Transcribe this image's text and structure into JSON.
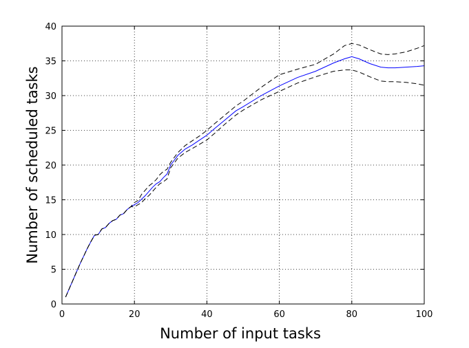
{
  "chart_data": {
    "type": "line",
    "title": "",
    "xlabel": "Number of input tasks",
    "ylabel": "Number of scheduled tasks",
    "xlim": [
      0,
      100
    ],
    "ylim": [
      0,
      40
    ],
    "xticks": [
      0,
      20,
      40,
      60,
      80,
      100
    ],
    "yticks": [
      0,
      5,
      10,
      15,
      20,
      25,
      30,
      35,
      40
    ],
    "xtick_labels": [
      "0",
      "20",
      "40",
      "60",
      "80",
      "100"
    ],
    "ytick_labels": [
      "0",
      "5",
      "10",
      "15",
      "20",
      "25",
      "30",
      "35",
      "40"
    ],
    "grid": true,
    "legend": "none",
    "series": [
      {
        "color": "#0000ff",
        "dash": "solid",
        "x": [
          1,
          2,
          3,
          4,
          5,
          6,
          7,
          8,
          9,
          10,
          11,
          12,
          13,
          14,
          15,
          16,
          17,
          18,
          19,
          20,
          21,
          22,
          23,
          24,
          25,
          26,
          27,
          28,
          29,
          30,
          32,
          34,
          36,
          38,
          40,
          42,
          45,
          48,
          50,
          55,
          60,
          65,
          70,
          75,
          78,
          80,
          82,
          85,
          88,
          90,
          92,
          95,
          98,
          100
        ],
        "y": [
          1,
          2.2,
          3.4,
          4.6,
          5.8,
          6.9,
          8,
          9,
          9.9,
          10,
          10.8,
          11,
          11.6,
          12,
          12.2,
          12.8,
          13,
          13.6,
          14,
          14.3,
          14.6,
          15.1,
          15.6,
          16.2,
          16.8,
          17.3,
          17.6,
          18.2,
          18.7,
          20,
          21.4,
          22.3,
          22.9,
          23.6,
          24.3,
          25.2,
          26.5,
          27.8,
          28.4,
          30,
          31.4,
          32.6,
          33.5,
          34.7,
          35.3,
          35.6,
          35.3,
          34.6,
          34.1,
          34.0,
          34.0,
          34.1,
          34.2,
          34.3
        ]
      },
      {
        "color": "#000000",
        "dash": "dashed",
        "x": [
          1,
          2,
          3,
          4,
          5,
          6,
          7,
          8,
          9,
          10,
          11,
          12,
          13,
          14,
          15,
          16,
          17,
          18,
          19,
          20,
          21,
          22,
          23,
          24,
          25,
          26,
          27,
          28,
          29,
          30,
          32,
          34,
          36,
          38,
          40,
          42,
          45,
          48,
          50,
          55,
          60,
          65,
          70,
          75,
          78,
          80,
          82,
          85,
          88,
          90,
          92,
          95,
          98,
          100
        ],
        "y": [
          1,
          2.2,
          3.4,
          4.6,
          5.8,
          6.9,
          8,
          9,
          9.9,
          10,
          10.8,
          11,
          11.6,
          12,
          12.2,
          12.8,
          13,
          13.6,
          14,
          14.6,
          14.9,
          15.8,
          16.4,
          17,
          17.4,
          17.9,
          18.6,
          19.1,
          19.4,
          20.4,
          21.8,
          22.8,
          23.5,
          24.2,
          25.0,
          25.9,
          27.2,
          28.5,
          29.2,
          31.2,
          33.0,
          33.8,
          34.5,
          36.0,
          37.2,
          37.5,
          37.3,
          36.6,
          36.0,
          35.9,
          36.0,
          36.3,
          36.8,
          37.2
        ]
      },
      {
        "color": "#000000",
        "dash": "dashed",
        "x": [
          1,
          2,
          3,
          4,
          5,
          6,
          7,
          8,
          9,
          10,
          11,
          12,
          13,
          14,
          15,
          16,
          17,
          18,
          19,
          20,
          21,
          22,
          23,
          24,
          25,
          26,
          27,
          28,
          29,
          30,
          32,
          34,
          36,
          38,
          40,
          42,
          45,
          48,
          50,
          55,
          60,
          65,
          70,
          75,
          78,
          80,
          82,
          85,
          88,
          90,
          92,
          95,
          98,
          100
        ],
        "y": [
          1,
          2.2,
          3.4,
          4.6,
          5.8,
          6.9,
          8,
          9,
          9.9,
          10,
          10.8,
          11,
          11.6,
          12,
          12.2,
          12.8,
          13,
          13.6,
          14,
          14.0,
          14.3,
          14.6,
          15.2,
          15.6,
          16.2,
          16.8,
          17.3,
          17.6,
          18.0,
          19.6,
          21.0,
          21.8,
          22.4,
          23.0,
          23.6,
          24.5,
          25.9,
          27.2,
          27.9,
          29.4,
          30.6,
          31.8,
          32.7,
          33.5,
          33.7,
          33.7,
          33.4,
          32.7,
          32.1,
          32.0,
          32.0,
          31.9,
          31.7,
          31.5
        ]
      }
    ]
  }
}
